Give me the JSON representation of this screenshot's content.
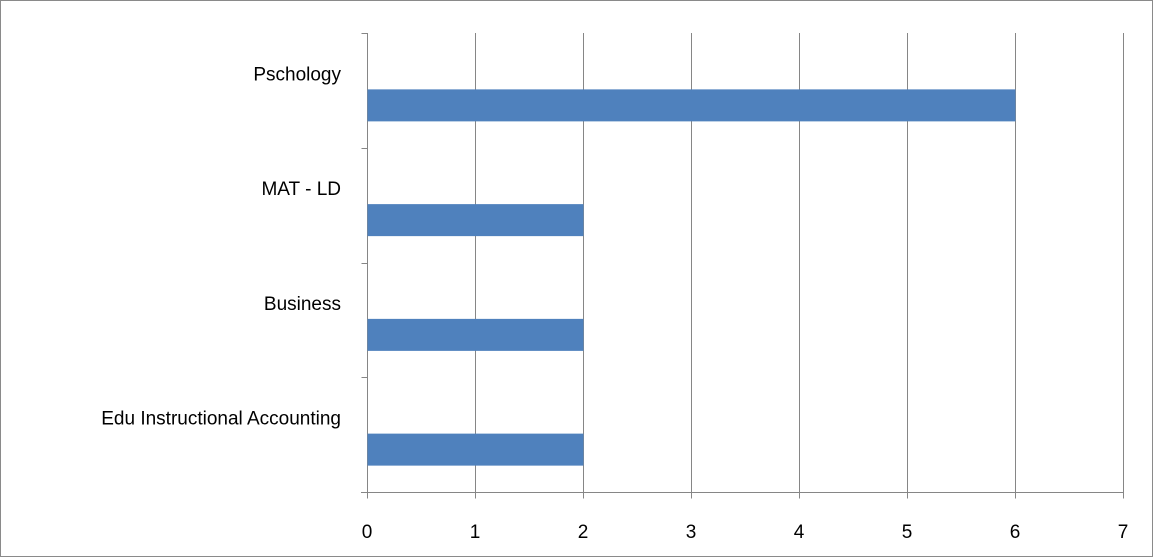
{
  "chart_data": {
    "type": "bar",
    "orientation": "horizontal",
    "categories": [
      "Pschology",
      "MAT - LD",
      "Business",
      "Edu Instructional Accounting"
    ],
    "values": [
      6,
      2,
      2,
      2
    ],
    "xlim": [
      0,
      7
    ],
    "xticks": [
      "0",
      "1",
      "2",
      "3",
      "4",
      "5",
      "6",
      "7"
    ],
    "grid": "vertical",
    "legend": "none",
    "bar_color": "#4f81bd"
  }
}
